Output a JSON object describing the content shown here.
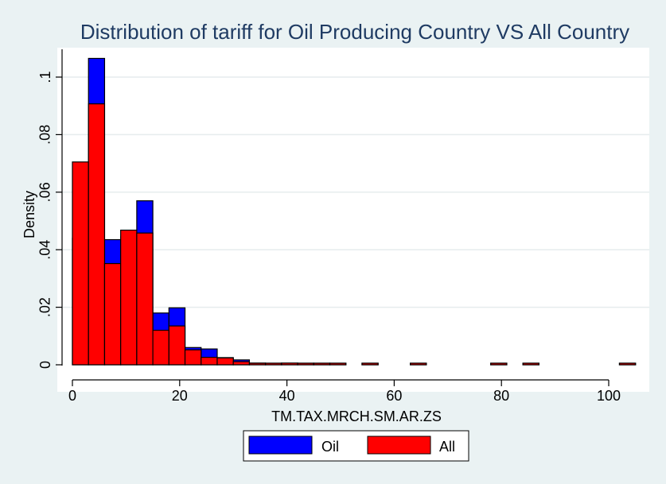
{
  "chart_data": {
    "type": "bar",
    "title": "Distribution of tariff for Oil Producing Country VS All Country",
    "xlabel": "TM.TAX.MRCH.SM.AR.ZS",
    "ylabel": "Density",
    "xlim": [
      -1,
      105.5
    ],
    "ylim": [
      0,
      0.11
    ],
    "xticks": [
      0,
      20,
      40,
      60,
      80,
      100
    ],
    "xtick_labels": [
      "0",
      "20",
      "40",
      "60",
      "80",
      "100"
    ],
    "yticks": [
      0,
      0.02,
      0.04,
      0.06,
      0.08,
      0.1
    ],
    "ytick_labels": [
      "0",
      ".02",
      ".04",
      ".06",
      ".08",
      ".1"
    ],
    "grid": true,
    "legend_position": "bottom",
    "series": [
      {
        "name": "Oil",
        "color": "#0000ff",
        "bin_width": 3,
        "x": [
          1.5,
          4.5,
          7.5,
          10.5,
          13.5,
          16.5,
          19.5,
          22.5,
          25.5,
          28.5,
          31.5,
          34.5,
          37.5,
          40.5,
          43.5,
          46.5,
          49.5,
          55.5,
          64.5,
          79.5,
          85.5,
          103.5
        ],
        "values": [
          0.044,
          0.1065,
          0.0435,
          0.0445,
          0.057,
          0.018,
          0.0198,
          0.006,
          0.0055,
          0.0025,
          0.0017,
          0.0006,
          0.0004,
          0.0003,
          0.0002,
          0.0001,
          0.0001,
          0.0001,
          0.0001,
          0.0001,
          0.0001,
          0.0001
        ]
      },
      {
        "name": "All",
        "color": "#ff0000",
        "bin_width": 3,
        "x": [
          1.5,
          4.5,
          7.5,
          10.5,
          13.5,
          16.5,
          19.5,
          22.5,
          25.5,
          28.5,
          31.5,
          34.5,
          37.5,
          40.5,
          43.5,
          46.5,
          49.5,
          55.5,
          64.5,
          79.5,
          85.5,
          103.5
        ],
        "values": [
          0.0705,
          0.0907,
          0.0352,
          0.0468,
          0.0458,
          0.012,
          0.0135,
          0.0052,
          0.0026,
          0.0024,
          0.0011,
          0.0004,
          0.0005,
          0.0006,
          0.0005,
          0.0003,
          0.0002,
          0.0002,
          0.0001,
          0.0001,
          0.0001,
          0.0001
        ]
      }
    ]
  }
}
